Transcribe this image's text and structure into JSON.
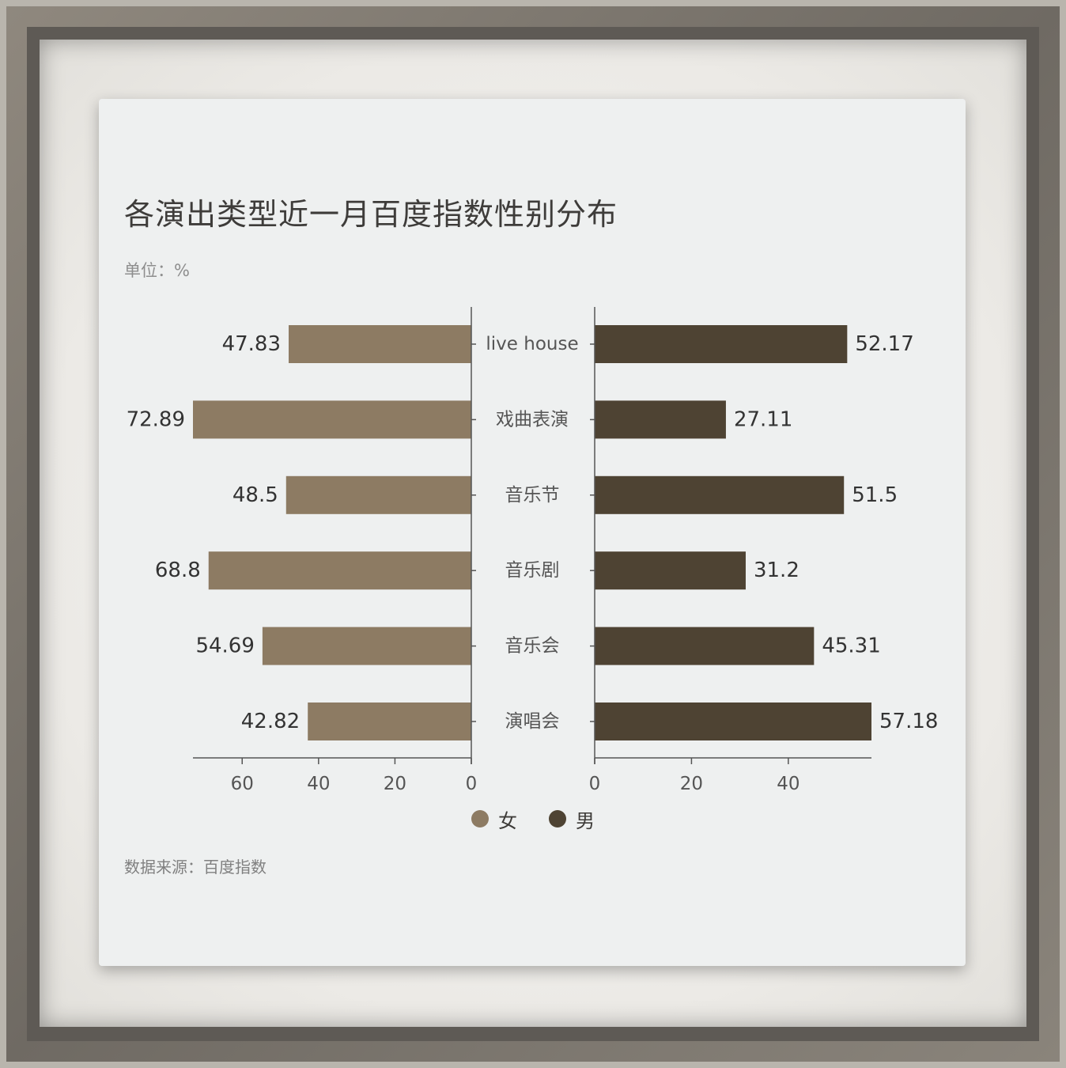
{
  "title": "各演出类型近一月百度指数性别分布",
  "unit_label": "单位：%",
  "source_label": "数据来源：百度指数",
  "colors": {
    "female": "#8d7b63",
    "male": "#4e4333",
    "axis": "#555555",
    "text": "#333333",
    "tick_text": "#555555"
  },
  "chart_data": {
    "type": "bar",
    "orientation": "horizontal",
    "layout": "butterfly",
    "categories": [
      "live house",
      "戏曲表演",
      "音乐节",
      "音乐剧",
      "音乐会",
      "演唱会"
    ],
    "series": [
      {
        "name": "女",
        "values": [
          47.83,
          72.89,
          48.5,
          68.8,
          54.69,
          42.82
        ]
      },
      {
        "name": "男",
        "values": [
          52.17,
          27.11,
          51.5,
          31.2,
          45.31,
          57.18
        ]
      }
    ],
    "left_axis": {
      "ticks": [
        60,
        40,
        20,
        0
      ],
      "xlim": [
        0,
        72.89
      ]
    },
    "right_axis": {
      "ticks": [
        0,
        20,
        40
      ],
      "xlim": [
        0,
        57.18
      ]
    },
    "legend": {
      "position": "bottom-center",
      "items": [
        "女",
        "男"
      ]
    }
  }
}
